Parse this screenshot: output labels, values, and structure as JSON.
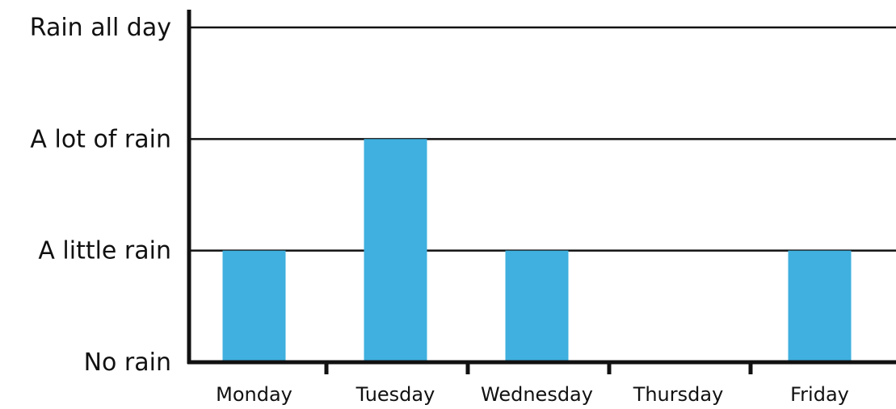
{
  "chart_data": {
    "type": "bar",
    "title": "",
    "xlabel": "",
    "ylabel": "",
    "categories": [
      "Monday",
      "Tuesday",
      "Wednesday",
      "Thursday",
      "Friday"
    ],
    "values": [
      1,
      2,
      1,
      0,
      1
    ],
    "y_levels": [
      "No rain",
      "A little rain",
      "A lot of rain",
      "Rain all day"
    ],
    "ylim": [
      0,
      3
    ],
    "grid": true,
    "bar_color": "#3fb0df",
    "axis_color": "#111111"
  }
}
